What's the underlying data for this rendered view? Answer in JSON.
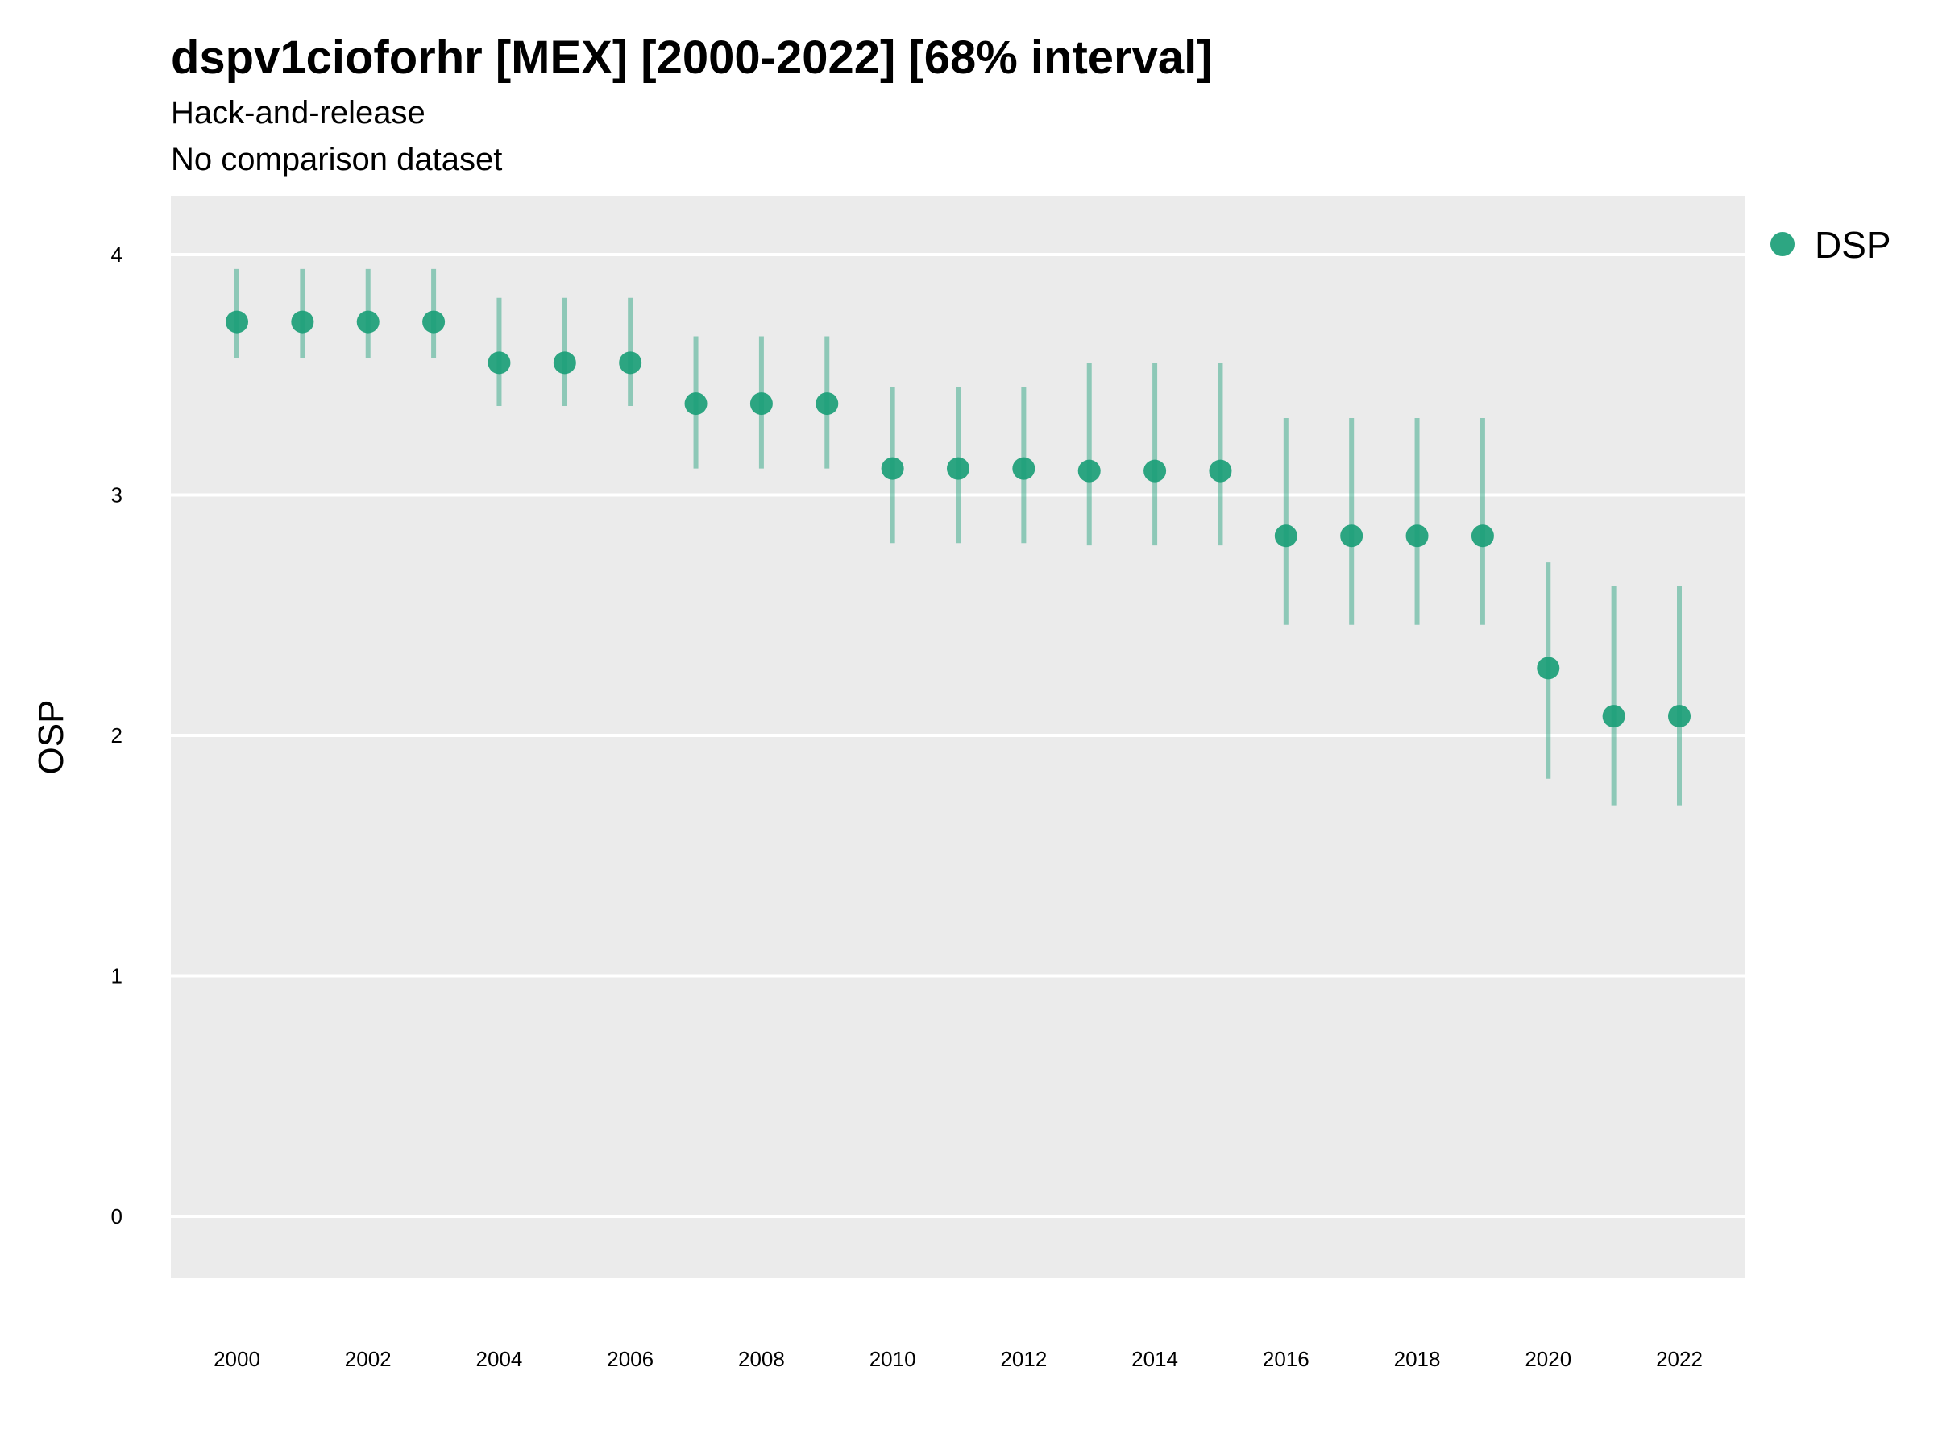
{
  "title": "dspv1cioforhr [MEX] [2000-2022] [68% interval]",
  "subtitle_line1": "Hack-and-release",
  "subtitle_line2": "No comparison dataset",
  "chart_data": {
    "type": "scatter",
    "title": "dspv1cioforhr [MEX] [2000-2022] [68% interval]",
    "xlabel": "",
    "ylabel": "OSP",
    "ylim": [
      -0.25,
      4.25
    ],
    "xlim": [
      1999,
      2023
    ],
    "grid": true,
    "legend_position": "top-right",
    "y_ticks": [
      0,
      1,
      2,
      3,
      4
    ],
    "x_ticks": [
      2000,
      2002,
      2004,
      2006,
      2008,
      2010,
      2012,
      2014,
      2016,
      2018,
      2020,
      2022
    ],
    "series": [
      {
        "name": "DSP",
        "color": "#1b9e77",
        "x": [
          2000,
          2001,
          2002,
          2003,
          2004,
          2005,
          2006,
          2007,
          2008,
          2009,
          2010,
          2011,
          2012,
          2013,
          2014,
          2015,
          2016,
          2017,
          2018,
          2019,
          2020,
          2021,
          2022
        ],
        "y": [
          3.72,
          3.72,
          3.72,
          3.72,
          3.55,
          3.55,
          3.55,
          3.38,
          3.38,
          3.38,
          3.11,
          3.11,
          3.11,
          3.1,
          3.1,
          3.1,
          2.83,
          2.83,
          2.83,
          2.83,
          2.28,
          2.08,
          2.08
        ],
        "lower": [
          3.57,
          3.57,
          3.57,
          3.57,
          3.37,
          3.37,
          3.37,
          3.11,
          3.11,
          3.11,
          2.8,
          2.8,
          2.8,
          2.79,
          2.79,
          2.79,
          2.46,
          2.46,
          2.46,
          2.46,
          1.82,
          1.71,
          1.71
        ],
        "upper": [
          3.94,
          3.94,
          3.94,
          3.94,
          3.82,
          3.82,
          3.82,
          3.66,
          3.66,
          3.66,
          3.45,
          3.45,
          3.45,
          3.55,
          3.55,
          3.55,
          3.32,
          3.32,
          3.32,
          3.32,
          2.72,
          2.62,
          2.62
        ]
      }
    ]
  }
}
